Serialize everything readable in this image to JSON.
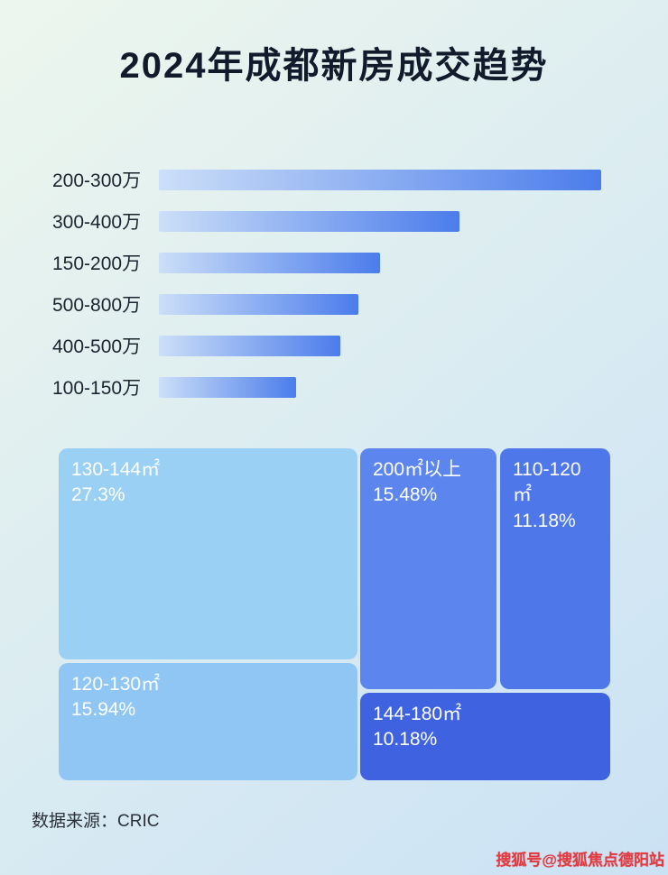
{
  "header": {
    "title": "2024年成都新房成交趋势"
  },
  "footer": {
    "source": "数据来源：CRIC",
    "watermark": "搜狐号@搜狐焦点德阳站"
  },
  "colors": {
    "background_gradient": [
      "#edf6ee",
      "#cbe2f4"
    ],
    "bar_gradient": [
      "#ccdff8",
      "#4b7ceb"
    ],
    "title_text": "#111b2c",
    "treemap_text": "#ffffff",
    "watermark_text": "#e13a40"
  },
  "chart_data": [
    {
      "type": "bar",
      "orientation": "horizontal",
      "title": "2024年成都新房成交趋势",
      "categories": [
        "200-300万",
        "300-400万",
        "150-200万",
        "500-800万",
        "400-500万",
        "100-150万"
      ],
      "values": [
        100,
        68,
        50,
        45,
        41,
        31
      ],
      "value_scale": "relative bar length, max = 100 (no numeric axis or data labels shown)",
      "xlabel": "",
      "ylabel": "",
      "grid": false,
      "legend": false
    },
    {
      "type": "treemap",
      "items": [
        {
          "label": "130-144㎡",
          "percent": "27.3%",
          "value": 27.3,
          "color": "#9bd0f5"
        },
        {
          "label": "200㎡以上",
          "percent": "15.48%",
          "value": 15.48,
          "color": "#5c86ee"
        },
        {
          "label": "110-120㎡",
          "percent": "11.18%",
          "value": 11.18,
          "color": "#4e77e9"
        },
        {
          "label": "120-130㎡",
          "percent": "15.94%",
          "value": 15.94,
          "color": "#8fc6f3"
        },
        {
          "label": "144-180㎡",
          "percent": "10.18%",
          "value": 10.18,
          "color": "#3f63e0"
        }
      ],
      "legend": false
    }
  ]
}
